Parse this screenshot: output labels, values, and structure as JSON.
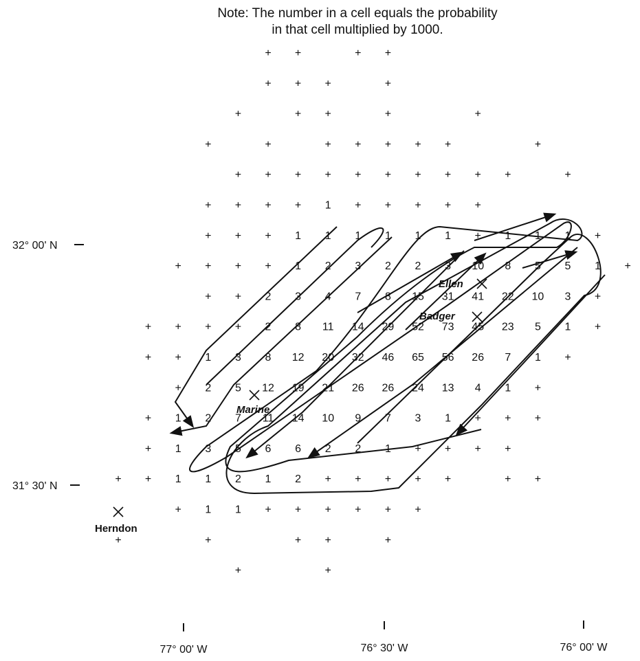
{
  "note": {
    "line1": "Note: The number in a cell equals the probability",
    "line2": "in that cell multiplied by 1000."
  },
  "lat_labels": [
    "32° 00' N",
    "31° 30' N"
  ],
  "lon_labels": [
    "77° 00' W",
    "76° 30' W",
    "76° 00' W"
  ],
  "places": {
    "ellen": "Ellen",
    "badger": "Badger",
    "marine": "Marine",
    "herndon": "Herndon"
  },
  "grid": [
    [
      "",
      "",
      "",
      "",
      "",
      "+",
      "+",
      "",
      "+",
      "+",
      "",
      "",
      "",
      "",
      "",
      "",
      ""
    ],
    [
      "",
      "",
      "",
      "",
      "",
      "+",
      "+",
      "+",
      "",
      "+",
      "",
      "",
      "",
      "",
      "",
      "",
      ""
    ],
    [
      "",
      "",
      "",
      "",
      "+",
      "",
      "+",
      "+",
      "",
      "+",
      "",
      "",
      "+",
      "",
      "",
      "",
      ""
    ],
    [
      "",
      "",
      "",
      "+",
      "",
      "+",
      "",
      "+",
      "+",
      "+",
      "+",
      "+",
      "",
      "",
      "+",
      "",
      ""
    ],
    [
      "",
      "",
      "",
      "",
      "+",
      "+",
      "+",
      "+",
      "+",
      "+",
      "+",
      "+",
      "+",
      "+",
      "",
      "+",
      ""
    ],
    [
      "",
      "",
      "",
      "+",
      "+",
      "+",
      "+",
      "1",
      "+",
      "+",
      "+",
      "+",
      "+",
      "",
      "",
      "",
      ""
    ],
    [
      "",
      "",
      "",
      "+",
      "+",
      "+",
      "1",
      "1",
      "1",
      "1",
      "1",
      "1",
      "+",
      "1",
      "1",
      "1",
      "+"
    ],
    [
      "",
      "",
      "+",
      "+",
      "+",
      "+",
      "1",
      "2",
      "3",
      "2",
      "2",
      "3",
      "10",
      "8",
      "5",
      "5",
      "1",
      "+"
    ],
    [
      "",
      "",
      "",
      "+",
      "+",
      "2",
      "3",
      "4",
      "7",
      "8",
      "15",
      "31",
      "41",
      "22",
      "10",
      "3",
      "+"
    ],
    [
      "",
      "+",
      "+",
      "+",
      "+",
      "2",
      "8",
      "11",
      "14",
      "29",
      "52",
      "73",
      "45",
      "23",
      "5",
      "1",
      "+"
    ],
    [
      "",
      "+",
      "+",
      "1",
      "3",
      "8",
      "12",
      "20",
      "32",
      "46",
      "65",
      "56",
      "26",
      "7",
      "1",
      "+",
      ""
    ],
    [
      "",
      "",
      "+",
      "2",
      "5",
      "12",
      "19",
      "21",
      "26",
      "26",
      "24",
      "13",
      "4",
      "1",
      "+",
      "",
      ""
    ],
    [
      "",
      "+",
      "1",
      "2",
      "7",
      "11",
      "14",
      "10",
      "9",
      "7",
      "3",
      "1",
      "+",
      "+",
      "+",
      "",
      ""
    ],
    [
      "",
      "+",
      "1",
      "3",
      "5",
      "6",
      "6",
      "2",
      "2",
      "1",
      "+",
      "+",
      "+",
      "+",
      "",
      "",
      ""
    ],
    [
      "+",
      "+",
      "1",
      "1",
      "2",
      "1",
      "2",
      "+",
      "+",
      "+",
      "+",
      "+",
      "",
      "+",
      "+",
      "",
      ""
    ],
    [
      "",
      "",
      "+",
      "1",
      "1",
      "+",
      "+",
      "+",
      "+",
      "+",
      "+",
      "",
      "",
      "",
      "",
      "",
      ""
    ],
    [
      "+",
      "",
      "",
      "+",
      "",
      "",
      "+",
      "+",
      "",
      "+",
      "",
      "",
      "",
      "",
      "",
      "",
      ""
    ],
    [
      "",
      "",
      "",
      "",
      "+",
      "",
      "",
      "+",
      "",
      "",
      "",
      "",
      "",
      "",
      "",
      "",
      ""
    ]
  ]
}
